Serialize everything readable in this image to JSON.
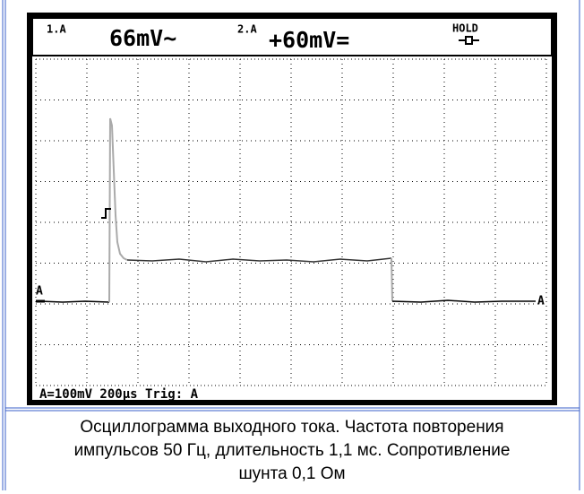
{
  "readings": {
    "ch1_label": "1.A",
    "ch1_value": "66mV~",
    "ch2_label": "2.A",
    "ch2_value": "+60mV=",
    "status": "HOLD"
  },
  "markers": {
    "left": "A",
    "right": "A"
  },
  "footer": "A=100mV 200µs Trig: A",
  "caption": [
    "Осциллограмма выходного тока. Частота повторения",
    "импульсов 50 Гц, длительность 1,1 мс. Сопротивление",
    "шунта 0,1 Ом"
  ]
}
